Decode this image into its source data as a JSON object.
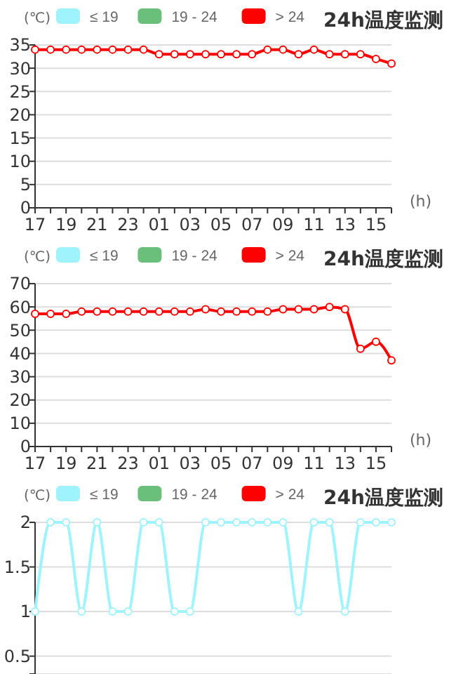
{
  "chart_data": [
    {
      "type": "line",
      "title": "24h温度监测",
      "xlabel": "(h)",
      "ylabel": "(℃)",
      "categories": [
        "17",
        null,
        "19",
        null,
        "21",
        null,
        "23",
        null,
        "01",
        null,
        "03",
        null,
        "05",
        null,
        "07",
        null,
        "09",
        null,
        "11",
        null,
        "13",
        null,
        "15",
        null
      ],
      "series": [
        {
          "name": "≤ 19",
          "color": "#9ff3fc",
          "values": [
            null,
            null,
            null,
            null,
            null,
            null,
            null,
            null,
            null,
            null,
            null,
            null,
            null,
            null,
            null,
            null,
            null,
            null,
            null,
            null,
            null,
            null,
            null,
            null
          ]
        },
        {
          "name": "19 - 24",
          "color": "#6abf7b",
          "values": [
            null,
            null,
            null,
            null,
            null,
            null,
            null,
            null,
            null,
            null,
            null,
            null,
            null,
            null,
            null,
            null,
            null,
            null,
            null,
            null,
            null,
            null,
            null,
            null
          ]
        },
        {
          "name": "> 24",
          "color": "#ff0000",
          "values": [
            34,
            34,
            34,
            34,
            34,
            34,
            34,
            34,
            33,
            33,
            33,
            33,
            33,
            33,
            33,
            34,
            34,
            33,
            34,
            33,
            33,
            33,
            32,
            31
          ]
        }
      ],
      "ylim": [
        0,
        35
      ],
      "yticks": [
        0,
        5,
        10,
        15,
        20,
        25,
        30,
        35
      ],
      "grid": "y",
      "legend": "top",
      "marker": "circle"
    },
    {
      "type": "line",
      "title": "24h温度监测",
      "xlabel": "(h)",
      "ylabel": "(℃)",
      "categories": [
        "17",
        null,
        "19",
        null,
        "21",
        null,
        "23",
        null,
        "01",
        null,
        "03",
        null,
        "05",
        null,
        "07",
        null,
        "09",
        null,
        "11",
        null,
        "13",
        null,
        "15",
        null
      ],
      "series": [
        {
          "name": "≤ 19",
          "color": "#9ff3fc",
          "values": [
            null,
            null,
            null,
            null,
            null,
            null,
            null,
            null,
            null,
            null,
            null,
            null,
            null,
            null,
            null,
            null,
            null,
            null,
            null,
            null,
            null,
            null,
            null,
            null
          ]
        },
        {
          "name": "19 - 24",
          "color": "#6abf7b",
          "values": [
            null,
            null,
            null,
            null,
            null,
            null,
            null,
            null,
            null,
            null,
            null,
            null,
            null,
            null,
            null,
            null,
            null,
            null,
            null,
            null,
            null,
            null,
            null,
            null
          ]
        },
        {
          "name": "> 24",
          "color": "#ff0000",
          "values": [
            57,
            57,
            57,
            58,
            58,
            58,
            58,
            58,
            58,
            58,
            58,
            59,
            58,
            58,
            58,
            58,
            59,
            59,
            59,
            60,
            59,
            42,
            45,
            37
          ]
        }
      ],
      "ylim": [
        0,
        70
      ],
      "yticks": [
        0,
        10,
        20,
        30,
        40,
        50,
        60,
        70
      ],
      "grid": "y",
      "legend": "top",
      "marker": "circle"
    },
    {
      "type": "line",
      "title": "24h温度监测",
      "ylabel": "(℃)",
      "categories": [
        null,
        null,
        null,
        null,
        null,
        null,
        null,
        null,
        null,
        null,
        null,
        null,
        null,
        null,
        null,
        null,
        null,
        null,
        null,
        null,
        null,
        null,
        null,
        null
      ],
      "series": [
        {
          "name": "≤ 19",
          "color": "#9ff3fc",
          "values": [
            1,
            2,
            2,
            1,
            2,
            1,
            1,
            2,
            2,
            1,
            1,
            2,
            2,
            2,
            2,
            2,
            2,
            1,
            2,
            2,
            1,
            2,
            2,
            2
          ]
        },
        {
          "name": "19 - 24",
          "color": "#6abf7b",
          "values": [
            null,
            null,
            null,
            null,
            null,
            null,
            null,
            null,
            null,
            null,
            null,
            null,
            null,
            null,
            null,
            null,
            null,
            null,
            null,
            null,
            null,
            null,
            null,
            null
          ]
        },
        {
          "name": "> 24",
          "color": "#ff0000",
          "values": [
            null,
            null,
            null,
            null,
            null,
            null,
            null,
            null,
            null,
            null,
            null,
            null,
            null,
            null,
            null,
            null,
            null,
            null,
            null,
            null,
            null,
            null,
            null,
            null
          ]
        }
      ],
      "ylim": [
        0.3,
        2
      ],
      "yticks": [
        {
          "value": 0.3,
          "label": null
        },
        0.5,
        1,
        1.5,
        2
      ],
      "grid": "y",
      "legend": "top",
      "marker": "circle",
      "tick_labels": "y"
    }
  ]
}
